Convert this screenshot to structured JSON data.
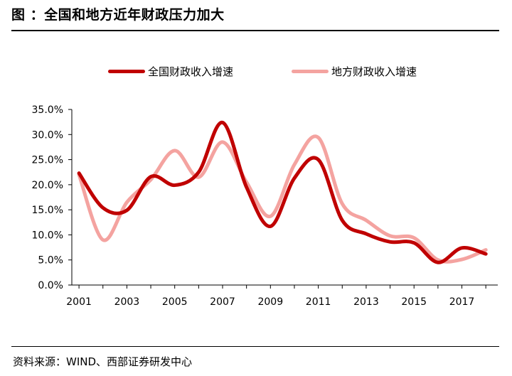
{
  "title": "图   ：全国和地方近年财政压力加大",
  "source": "资料来源：WIND、西部证券研发中心",
  "chart_data": {
    "type": "line",
    "x": [
      2001,
      2002,
      2003,
      2004,
      2005,
      2006,
      2007,
      2008,
      2009,
      2010,
      2011,
      2012,
      2013,
      2014,
      2015,
      2016,
      2017,
      2018
    ],
    "x_tick_labels": [
      "2001",
      "2003",
      "2005",
      "2007",
      "2009",
      "2011",
      "2013",
      "2015",
      "2017"
    ],
    "y_tick_labels": [
      "0.0%",
      "5.0%",
      "10.0%",
      "15.0%",
      "20.0%",
      "25.0%",
      "30.0%",
      "35.0%"
    ],
    "ylim": [
      0,
      35
    ],
    "legend_position": "top",
    "series": [
      {
        "name": "全国财政收入增速",
        "color": "#c00000",
        "values": [
          22.3,
          15.4,
          14.9,
          21.6,
          19.9,
          22.5,
          32.4,
          19.5,
          11.7,
          21.3,
          25.0,
          12.9,
          10.2,
          8.6,
          8.4,
          4.5,
          7.4,
          6.2
        ]
      },
      {
        "name": "地方财政收入增速",
        "color": "#f4a3a0",
        "values": [
          22.0,
          9.0,
          16.5,
          21.0,
          26.8,
          21.5,
          28.5,
          20.5,
          13.7,
          24.0,
          29.4,
          16.2,
          12.9,
          9.8,
          9.4,
          5.0,
          5.1,
          7.0
        ]
      }
    ]
  }
}
